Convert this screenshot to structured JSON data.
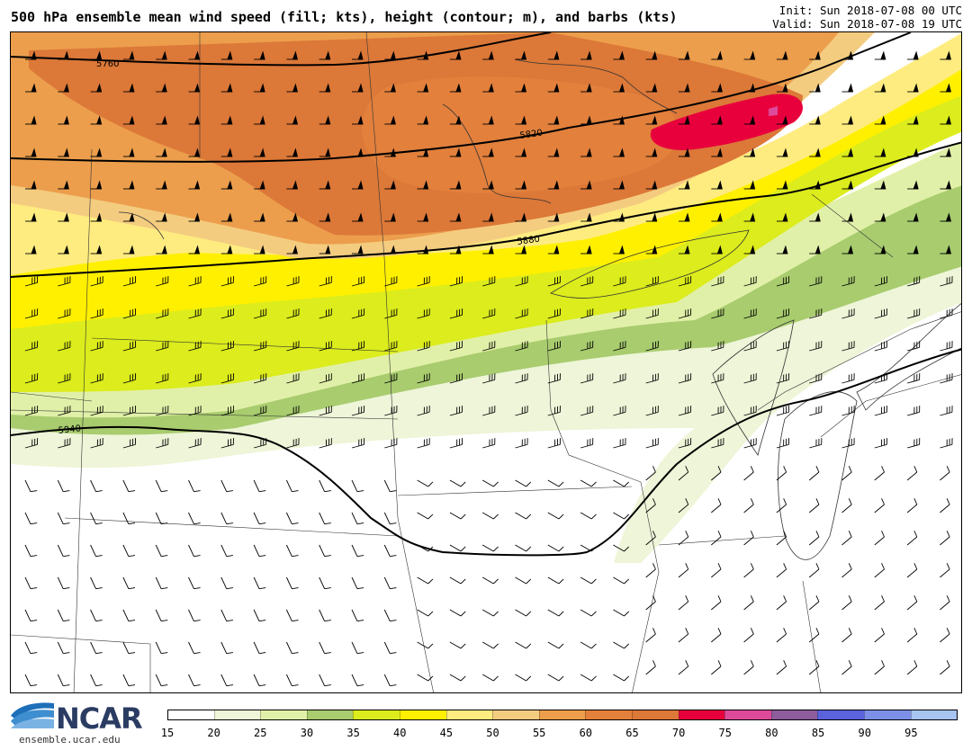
{
  "header": {
    "title": "500 hPa ensemble mean wind speed (fill; kts), height (contour; m), and barbs (kts)",
    "init": "Init: Sun 2018-07-08 00 UTC",
    "valid": "Valid: Sun 2018-07-08 19 UTC"
  },
  "map": {
    "contour_labels": [
      "5760",
      "5820",
      "5880",
      "5940"
    ]
  },
  "colorbar": {
    "ticks": [
      "15",
      "20",
      "25",
      "30",
      "35",
      "40",
      "45",
      "50",
      "55",
      "60",
      "65",
      "70",
      "75",
      "80",
      "85",
      "90",
      "95"
    ],
    "colors": [
      "#ffffff",
      "#eef5d8",
      "#e1f0a8",
      "#a8cc6e",
      "#dcec1c",
      "#fff000",
      "#ffec80",
      "#f4cc80",
      "#ec9e4c",
      "#e2803c",
      "#dc7838",
      "#e8003c",
      "#dd4a9a",
      "#8e5e9c",
      "#5a62dc",
      "#7c90e8",
      "#a8c4f0"
    ]
  },
  "logo": {
    "name": "NCAR",
    "url": "ensemble.ucar.edu"
  }
}
